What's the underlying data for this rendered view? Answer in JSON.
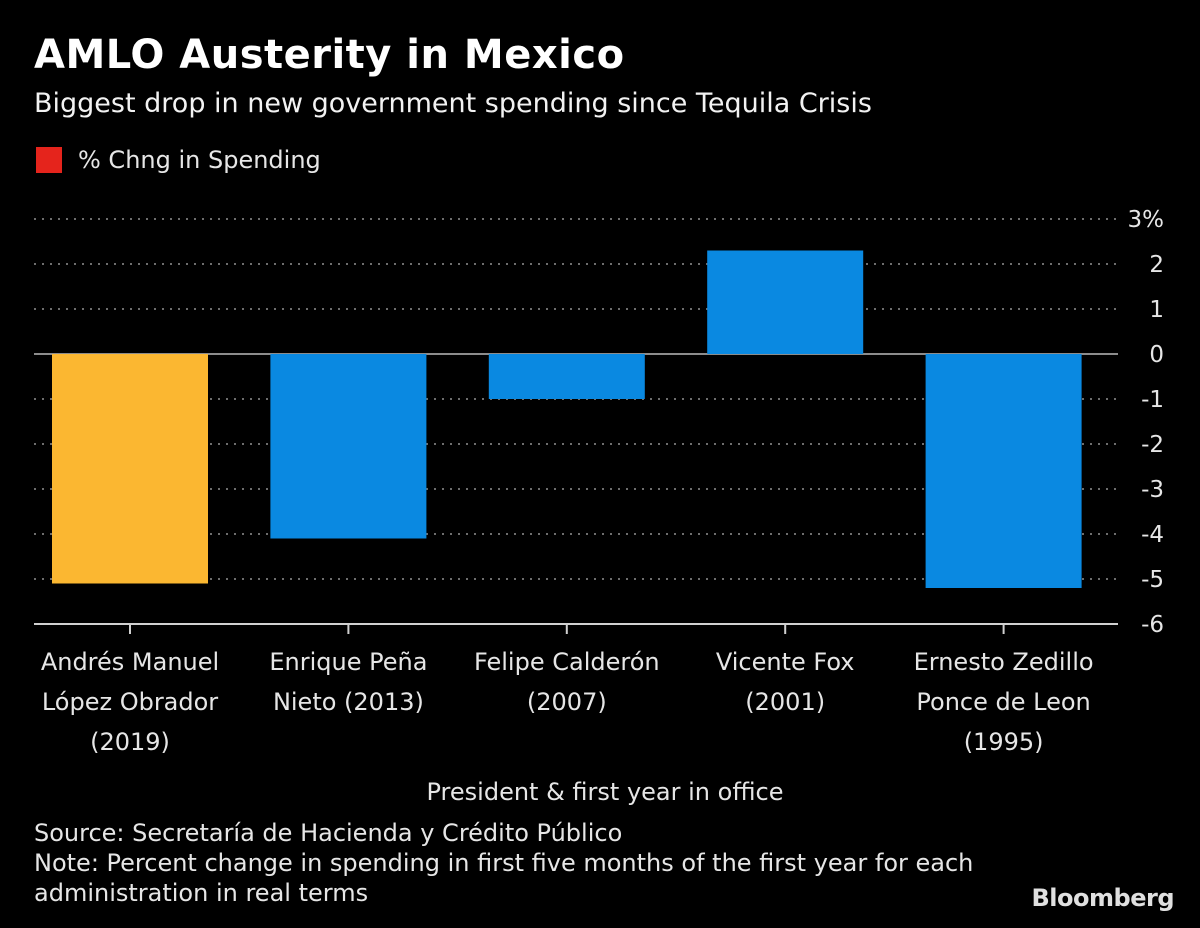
{
  "chart_data": {
    "type": "bar",
    "title": "AMLO Austerity in Mexico",
    "subtitle": "Biggest drop in new government spending since Tequila Crisis",
    "legend": [
      {
        "label": "% Chng in Spending",
        "color": "#e5241c"
      }
    ],
    "categories": [
      [
        "Andrés Manuel",
        "López Obrador",
        "(2019)"
      ],
      [
        "Enrique Peña",
        "Nieto (2013)"
      ],
      [
        "Felipe Calderón",
        "(2007)"
      ],
      [
        "Vicente Fox",
        "(2001)"
      ],
      [
        "Ernesto Zedillo",
        "Ponce de Leon",
        "(1995)"
      ]
    ],
    "values": [
      -5.1,
      -4.1,
      -1.0,
      2.3,
      -5.2
    ],
    "bar_colors": [
      "#fbb731",
      "#0a89e1",
      "#0a89e1",
      "#0a89e1",
      "#0a89e1"
    ],
    "ylim": [
      -6,
      3
    ],
    "yticks": [
      3,
      2,
      1,
      0,
      -1,
      -2,
      -3,
      -4,
      -5,
      -6
    ],
    "ytick_labels": [
      "3%",
      "2",
      "1",
      "0",
      "-1",
      "-2",
      "-3",
      "-4",
      "-5",
      "-6"
    ],
    "xlabel": "President & first year in office",
    "ylabel": "",
    "grid": true,
    "axis_position": "right"
  },
  "source": "Source: Secretaría de Hacienda y Crédito Público",
  "note": "Note: Percent change in spending in first five months of the first year for each administration in real terms",
  "brand": "Bloomberg"
}
